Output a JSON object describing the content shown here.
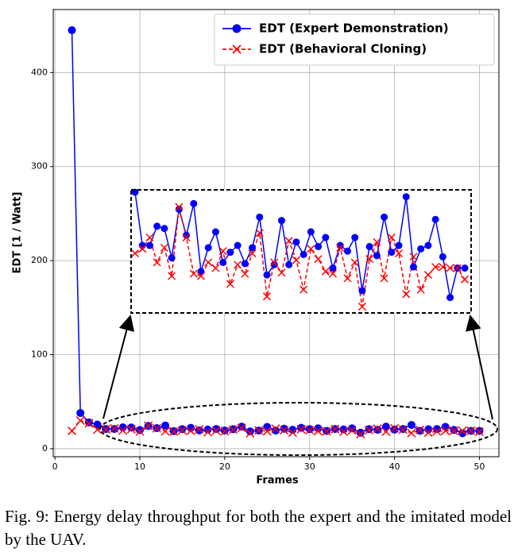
{
  "chart_data": {
    "type": "line",
    "xlabel": "Frames",
    "ylabel": "EDT [1 / Watt]",
    "x": [
      2,
      3,
      4,
      5,
      6,
      7,
      8,
      9,
      10,
      11,
      12,
      13,
      14,
      15,
      16,
      17,
      18,
      19,
      20,
      21,
      22,
      23,
      24,
      25,
      26,
      27,
      28,
      29,
      30,
      31,
      32,
      33,
      34,
      35,
      36,
      37,
      38,
      39,
      40,
      41,
      42,
      43,
      44,
      45,
      46,
      47,
      48,
      49,
      50
    ],
    "series": [
      {
        "name": "EDT (Expert Demonstration)",
        "color": "#0000ff",
        "marker": "o",
        "linestyle": "solid",
        "values": [
          445,
          38,
          28,
          25.7,
          21.0,
          21.0,
          22.7,
          22.5,
          19.9,
          24.2,
          21.9,
          24.7,
          18.7,
          20.8,
          22.2,
          19.5,
          20.4,
          21.0,
          19.4,
          20.8,
          23.5,
          18.4,
          19.3,
          23.2,
          19.3,
          21.3,
          20.2,
          22.2,
          20.9,
          21.7,
          19.0,
          21.0,
          20.5,
          21.7,
          17.0,
          20.9,
          20.1,
          23.5,
          20.4,
          21.0,
          25.3,
          19.1,
          20.7,
          21.0,
          23.3,
          20.0,
          16.4,
          19.0,
          19.0
        ]
      },
      {
        "name": "EDT (Behavioral Cloning)",
        "color": "#ff0000",
        "marker": "x",
        "linestyle": "dashed",
        "values": [
          19,
          30,
          27,
          20.3,
          20.7,
          21.7,
          19.5,
          20.8,
          18.3,
          24.4,
          21.7,
          18.5,
          18.3,
          19.5,
          19.0,
          20.5,
          17.6,
          19.3,
          18.5,
          20.3,
          22.1,
          16.5,
          19.5,
          18.6,
          21.4,
          19.7,
          17.1,
          20.7,
          19.8,
          18.7,
          18.5,
          20.8,
          18.1,
          19.5,
          15.6,
          19.8,
          21.3,
          18.1,
          21.7,
          20.3,
          16.7,
          20.0,
          17.1,
          18.4,
          19.1,
          19.1,
          19.0,
          19.0,
          18.0
        ]
      }
    ],
    "xlim": [
      -0.2,
      52.3
    ],
    "ylim": [
      -8.5,
      467
    ],
    "xticks": [
      0,
      10,
      20,
      30,
      40,
      50
    ],
    "yticks": [
      0,
      100,
      200,
      300,
      400
    ],
    "grid": true,
    "legend": "upper right"
  },
  "caption": "Fig. 9: Energy delay throughput for both the expert and the imitated model by the UAV."
}
